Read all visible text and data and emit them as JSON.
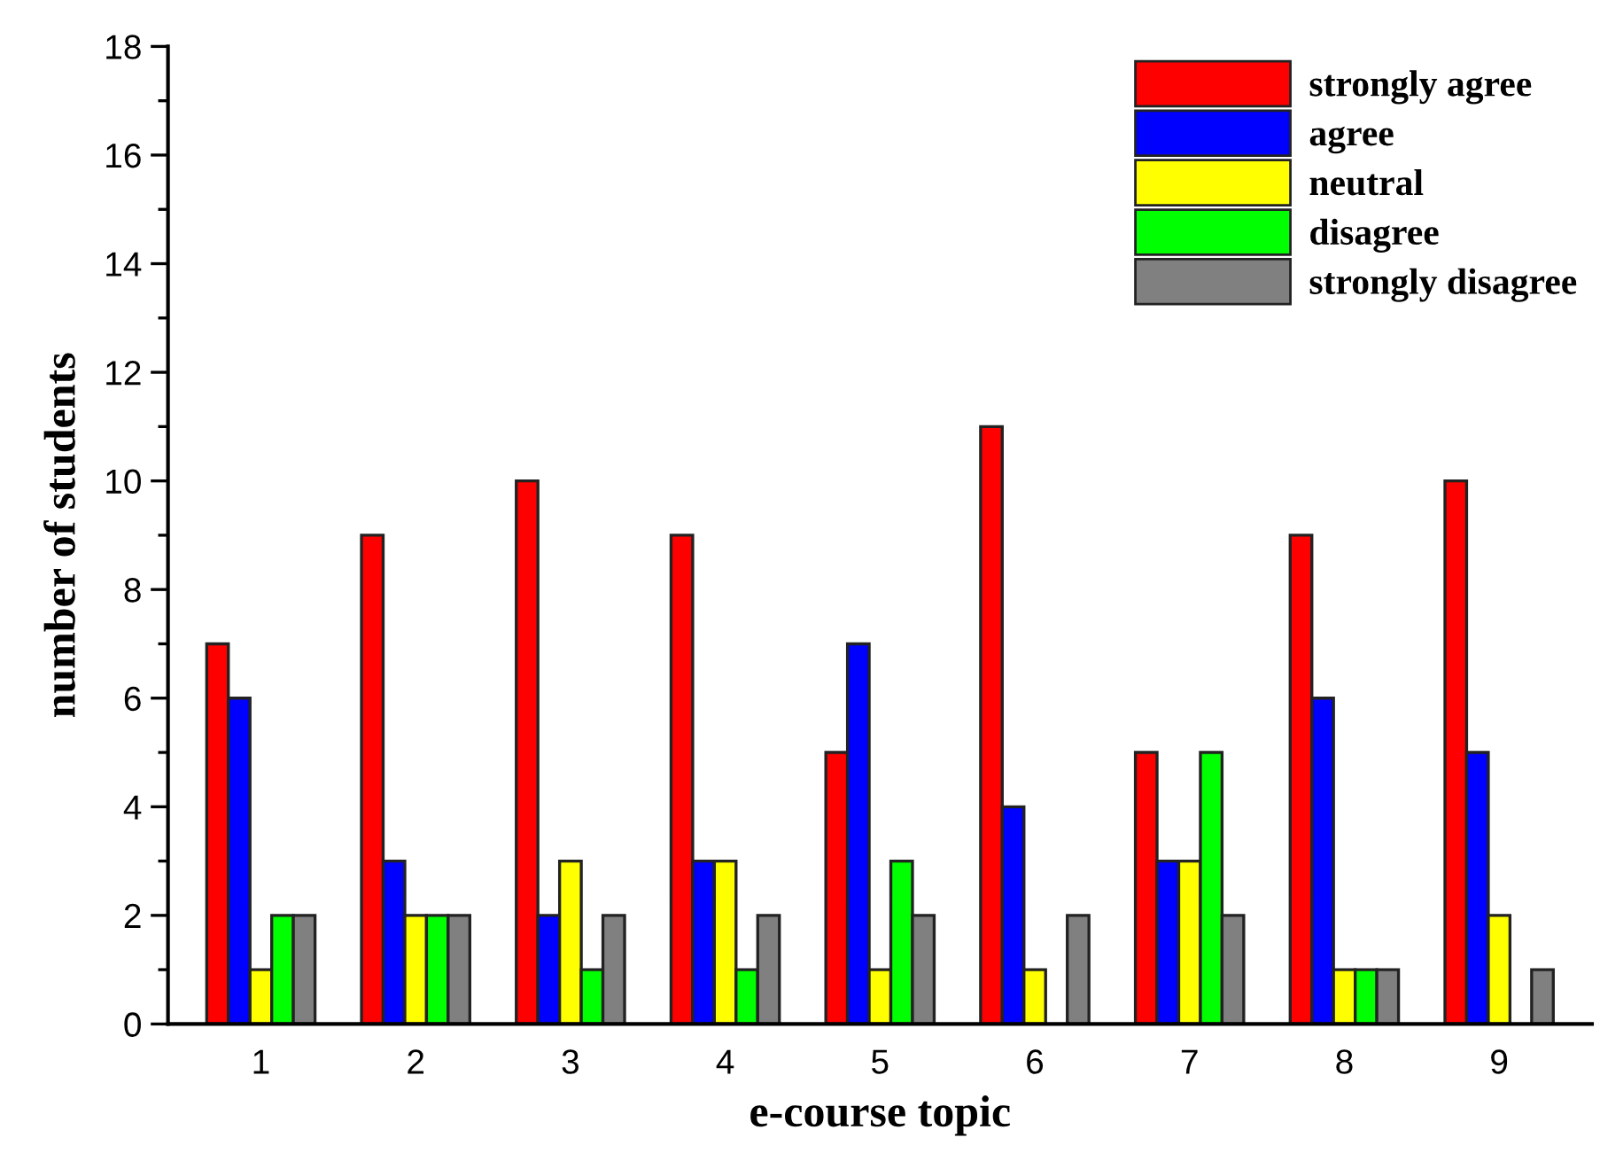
{
  "chart_data": {
    "type": "bar",
    "xlabel": "e-course topic",
    "ylabel": "number of students",
    "categories": [
      "1",
      "2",
      "3",
      "4",
      "5",
      "6",
      "7",
      "8",
      "9"
    ],
    "series": [
      {
        "name": "strongly agree",
        "color": "#ff0000",
        "values": [
          7,
          9,
          10,
          9,
          5,
          11,
          5,
          9,
          10
        ]
      },
      {
        "name": "agree",
        "color": "#0000ff",
        "values": [
          6,
          3,
          2,
          3,
          7,
          4,
          3,
          6,
          5
        ]
      },
      {
        "name": "neutral",
        "color": "#ffff00",
        "values": [
          1,
          2,
          3,
          3,
          1,
          1,
          3,
          1,
          2
        ]
      },
      {
        "name": "disagree",
        "color": "#00ff00",
        "values": [
          2,
          2,
          1,
          1,
          3,
          0,
          5,
          1,
          0
        ]
      },
      {
        "name": "strongly disagree",
        "color": "#808080",
        "values": [
          2,
          2,
          2,
          2,
          2,
          2,
          2,
          1,
          1
        ]
      }
    ],
    "ylim": [
      0,
      18
    ],
    "yticks": [
      0,
      2,
      4,
      6,
      8,
      10,
      12,
      14,
      16,
      18
    ],
    "grid": false,
    "legend": "top right"
  }
}
